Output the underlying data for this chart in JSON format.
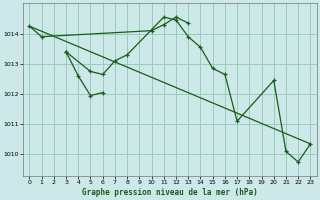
{
  "background_color": "#cce8e8",
  "grid_color": "#99ccbb",
  "line_color": "#1a5c1a",
  "xlabel": "Graphe pression niveau de la mer (hPa)",
  "xlim": [
    -0.5,
    23.5
  ],
  "ylim": [
    1009.3,
    1015.0
  ],
  "yticks": [
    1010,
    1011,
    1012,
    1013,
    1014
  ],
  "xticks": [
    0,
    1,
    2,
    3,
    4,
    5,
    6,
    7,
    8,
    9,
    10,
    11,
    12,
    13,
    14,
    15,
    16,
    17,
    18,
    19,
    20,
    21,
    22,
    23
  ],
  "s1x": [
    0,
    1,
    10,
    11,
    12,
    13
  ],
  "s1y": [
    1014.25,
    1013.9,
    1014.1,
    1014.3,
    1014.55,
    1014.35
  ],
  "s2x": [
    3,
    5,
    6,
    7,
    8,
    11,
    12,
    13,
    14,
    15,
    16,
    17,
    20,
    21,
    22,
    23
  ],
  "s2y": [
    1013.4,
    1012.75,
    1012.65,
    1013.1,
    1013.3,
    1014.55,
    1014.45,
    1013.9,
    1013.55,
    1012.85,
    1012.65,
    1011.1,
    1012.45,
    1010.1,
    1009.75,
    1010.35
  ],
  "s3x": [
    3,
    4,
    5,
    6
  ],
  "s3y": [
    1013.4,
    1012.6,
    1011.95,
    1012.05
  ],
  "s4x": [
    0,
    23
  ],
  "s4y": [
    1014.25,
    1010.35
  ],
  "marker": "+",
  "markersize": 3.5,
  "linewidth": 0.9
}
